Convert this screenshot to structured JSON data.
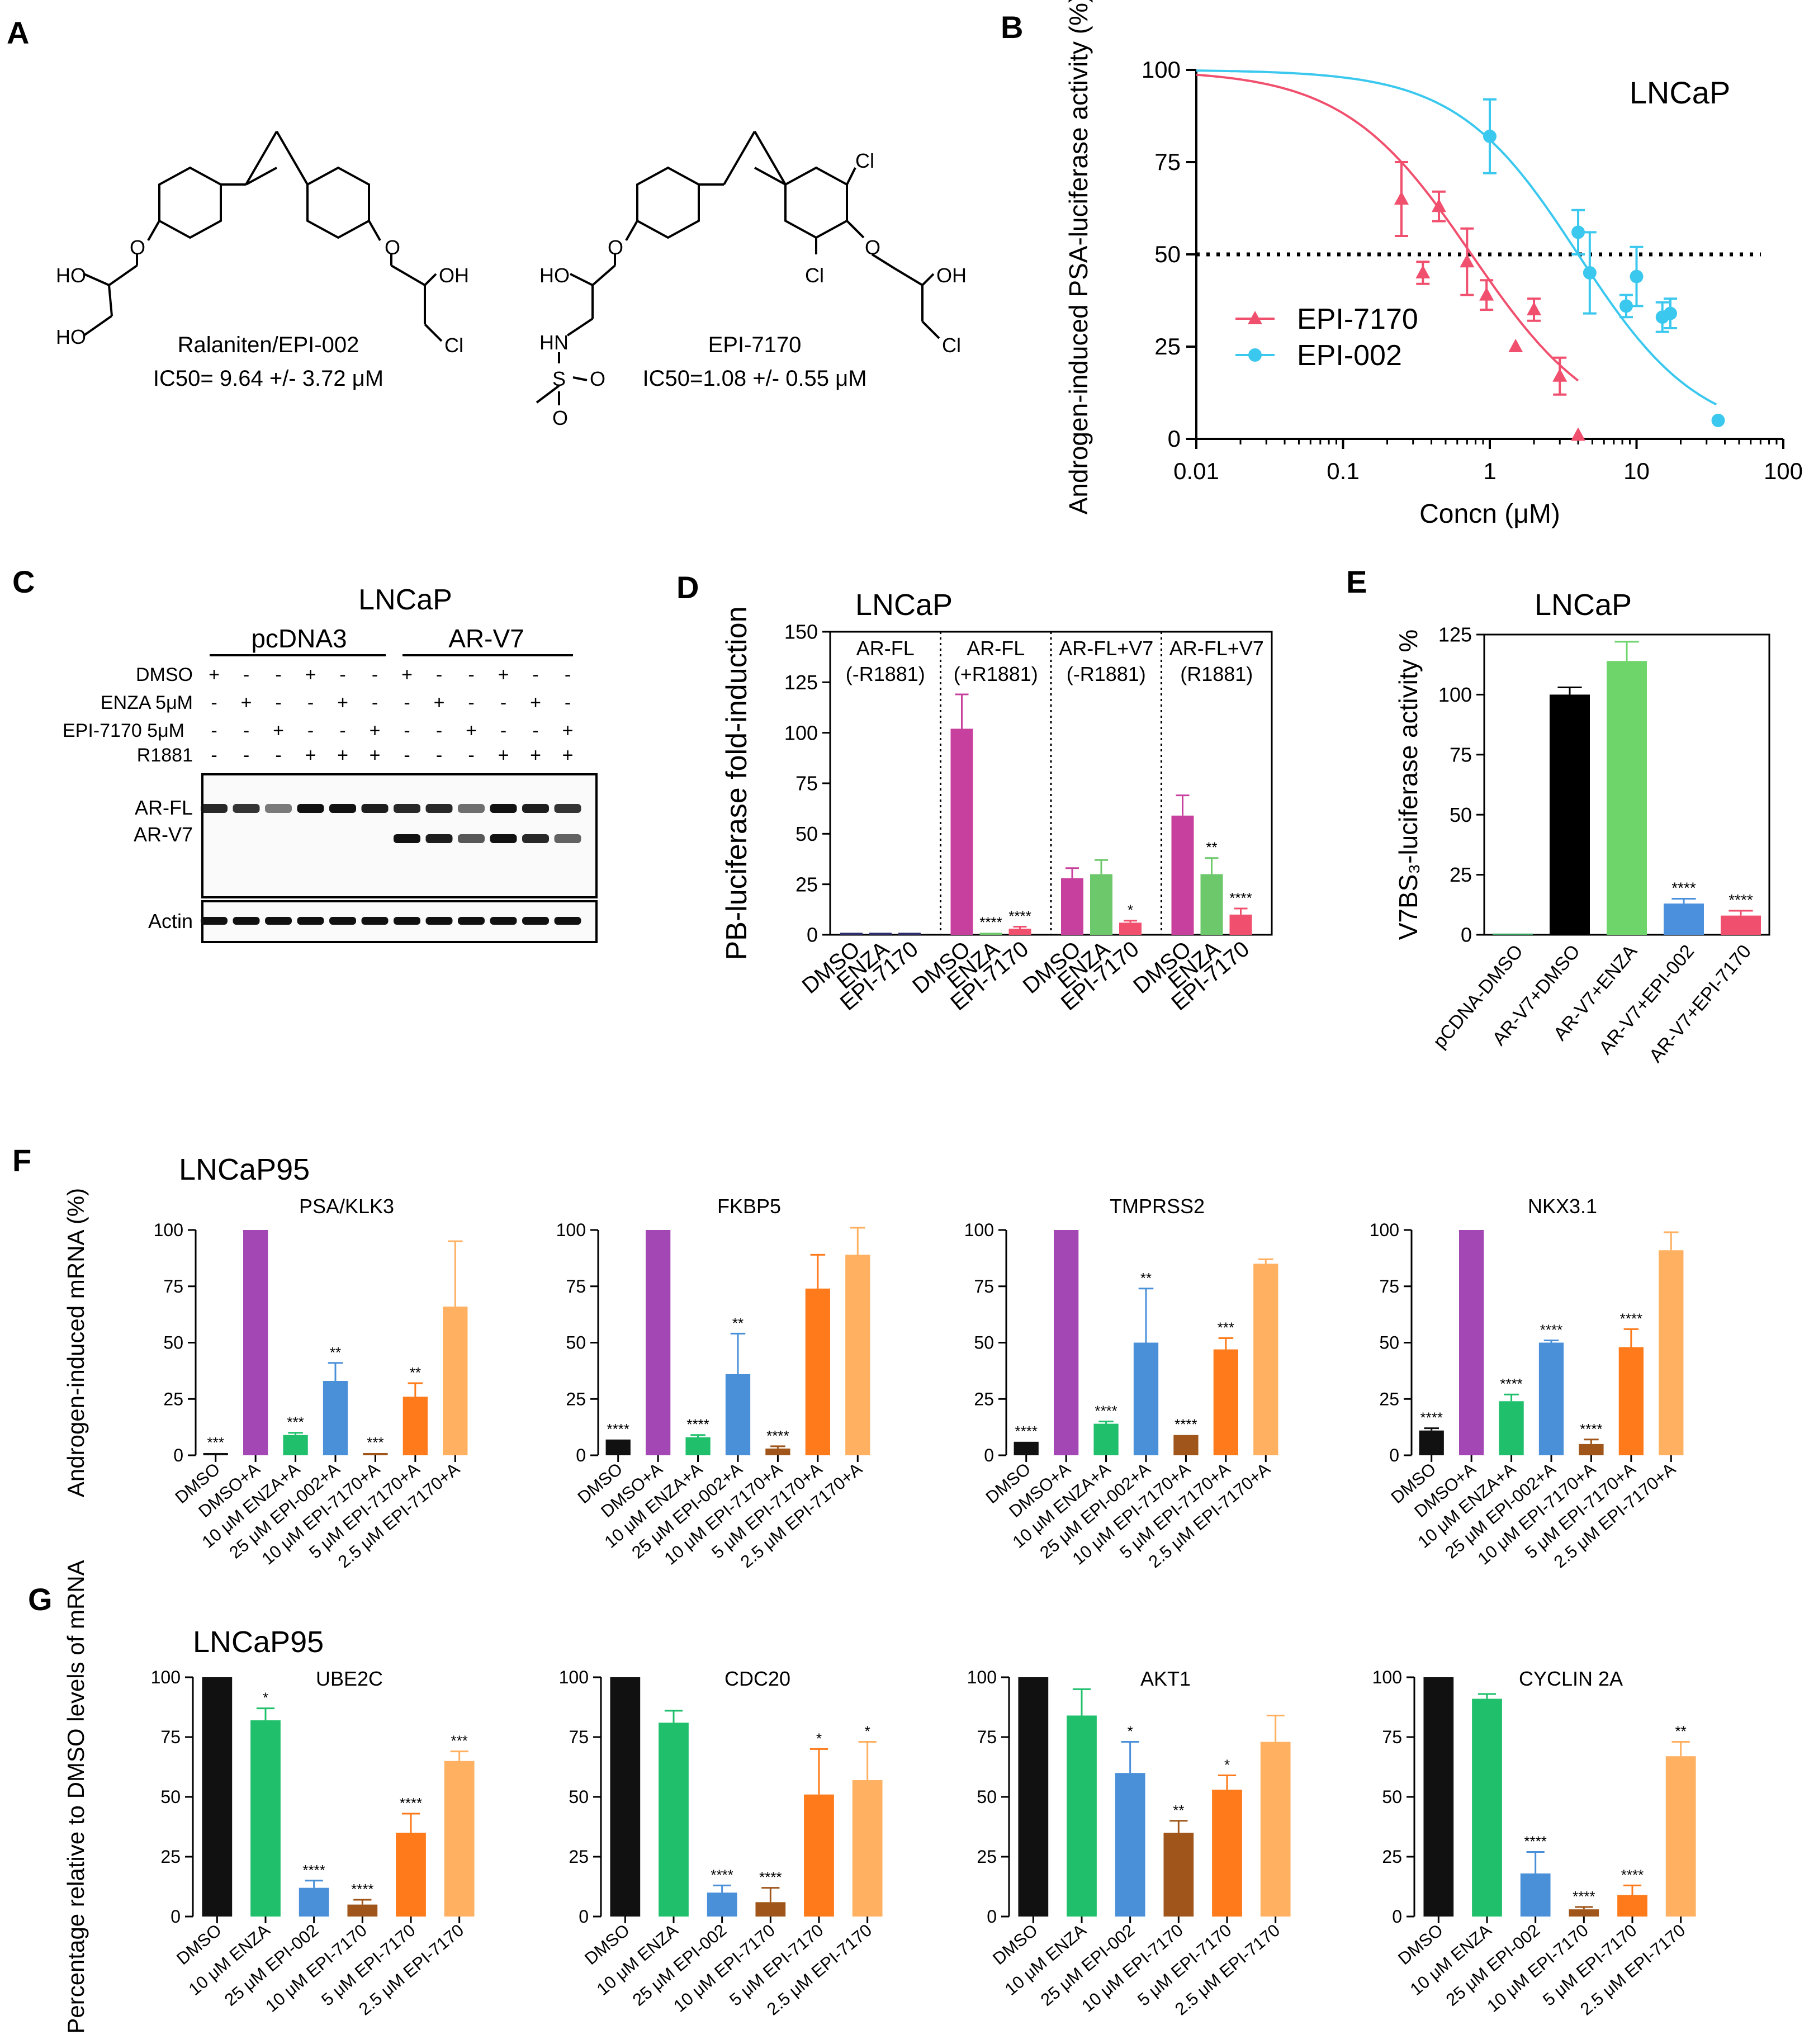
{
  "panel_letters": [
    "A",
    "B",
    "C",
    "D",
    "E",
    "F",
    "G"
  ],
  "structures": {
    "epi002": {
      "name": "Ralaniten/EPI-002",
      "ic50": "IC50= 9.64 +/- 3.72 μM",
      "atoms": [
        "HO",
        "HO",
        "O",
        "O",
        "OH",
        "Cl"
      ]
    },
    "epi7170": {
      "name": "EPI-7170",
      "ic50": "IC50=1.08 +/- 0.55 μM",
      "atoms": [
        "HO",
        "HN",
        "S",
        "O",
        "O",
        "O",
        "O",
        "Cl",
        "Cl",
        "OH",
        "Cl"
      ]
    }
  },
  "blot": {
    "title": "LNCaP",
    "groups": [
      "pcDNA3",
      "AR-V7"
    ],
    "row_labels": [
      "DMSO",
      "ENZA 5μM",
      "EPI-7170 5μM",
      "R1881"
    ],
    "signs": [
      [
        "+",
        "-",
        "-",
        "+",
        "-",
        "-",
        "+",
        "-",
        "-",
        "+",
        "-",
        "-"
      ],
      [
        "-",
        "+",
        "-",
        "-",
        "+",
        "-",
        "-",
        "+",
        "-",
        "-",
        "+",
        "-"
      ],
      [
        "-",
        "-",
        "+",
        "-",
        "-",
        "+",
        "-",
        "-",
        "+",
        "-",
        "-",
        "+"
      ],
      [
        "-",
        "-",
        "-",
        "+",
        "+",
        "+",
        "-",
        "-",
        "-",
        "+",
        "+",
        "+"
      ]
    ],
    "band_labels": [
      "AR-FL",
      "AR-V7"
    ],
    "actin_label": "Actin"
  },
  "chart_data": [
    {
      "id": "B",
      "type": "scatter",
      "annotation": "LNCaP",
      "xlabel": "Concn (μM)",
      "ylabel": "Androgen-induced PSA-luciferase activity (%)",
      "xscale": "log",
      "xlim": [
        0.01,
        100
      ],
      "ylim": [
        0,
        100
      ],
      "xticks": [
        "0.01",
        "0.1",
        "1",
        "10",
        "100"
      ],
      "yticks": [
        "0",
        "25",
        "50",
        "75",
        "100"
      ],
      "reference_line_y": 50,
      "legend": "left-middle",
      "series": [
        {
          "name": "EPI-7170",
          "color": "#f0506e",
          "marker": "triangle",
          "fit_ic50": 0.75,
          "fit_hill": 1.0,
          "fit_range": [
            0.01,
            4
          ],
          "x": [
            0.25,
            0.35,
            0.45,
            0.7,
            0.95,
            1.5,
            2.0,
            3.0,
            4.0
          ],
          "y": [
            65,
            45,
            63,
            48,
            39,
            25,
            35,
            17,
            1
          ],
          "err": [
            10,
            3,
            4,
            9,
            4,
            0,
            3,
            5,
            0
          ]
        },
        {
          "name": "EPI-002",
          "color": "#3bc8ee",
          "marker": "circle",
          "fit_ic50": 4.0,
          "fit_hill": 1.05,
          "fit_range": [
            0.01,
            35
          ],
          "x": [
            1.0,
            4.0,
            4.8,
            8.5,
            10.0,
            15.0,
            17.0,
            36.0
          ],
          "y": [
            82,
            56,
            45,
            36,
            44,
            33,
            34,
            5
          ],
          "err": [
            10,
            6,
            11,
            3,
            8,
            4,
            4,
            0
          ]
        }
      ]
    },
    {
      "id": "D",
      "type": "bar",
      "title": "LNCaP",
      "ylabel": "PB-luciferase fold-induction",
      "ylim": [
        0,
        150
      ],
      "yticks": [
        "0",
        "25",
        "50",
        "75",
        "100",
        "125",
        "150"
      ],
      "groups": [
        {
          "label": [
            "AR-FL",
            "(-R1881)"
          ],
          "categories": [
            "DMSO",
            "ENZA",
            "EPI-7170"
          ],
          "values": [
            1,
            1,
            1
          ],
          "errors": [
            0,
            0,
            0
          ],
          "sig": [
            "",
            "",
            ""
          ]
        },
        {
          "label": [
            "AR-FL",
            "(+R1881)"
          ],
          "categories": [
            "DMSO",
            "ENZA",
            "EPI-7170"
          ],
          "values": [
            102,
            1,
            3
          ],
          "errors": [
            17,
            0,
            1
          ],
          "sig": [
            "",
            "****",
            "****"
          ]
        },
        {
          "label": [
            "AR-FL+V7",
            "(-R1881)"
          ],
          "categories": [
            "DMSO",
            "ENZA",
            "EPI-7170"
          ],
          "values": [
            28,
            30,
            6
          ],
          "errors": [
            5,
            7,
            1
          ],
          "sig": [
            "",
            "",
            "*"
          ]
        },
        {
          "label": [
            "AR-FL+V7",
            "(R1881)"
          ],
          "categories": [
            "DMSO",
            "ENZA",
            "EPI-7170"
          ],
          "values": [
            59,
            30,
            10
          ],
          "errors": [
            10,
            8,
            3
          ],
          "sig": [
            "",
            "**",
            "****"
          ]
        }
      ],
      "colors": [
        "#c8409e",
        "#6cc86a",
        "#f0506e"
      ],
      "first_group_colors": [
        "#2c2c6c",
        "#2c2c6c",
        "#2c2c6c"
      ]
    },
    {
      "id": "E",
      "type": "bar",
      "title": "LNCaP",
      "ylabel": "V7BS₃-luciferase activity %",
      "ylim": [
        0,
        125
      ],
      "yticks": [
        "0",
        "25",
        "50",
        "75",
        "100",
        "125"
      ],
      "categories": [
        "pCDNA-DMSO",
        "AR-V7+DMSO",
        "AR-V7+ENZA",
        "AR-V7+EPI-002",
        "AR-V7+EPI-7170"
      ],
      "values": [
        0.5,
        100,
        114,
        13,
        8
      ],
      "errors": [
        0,
        3,
        8,
        2,
        2
      ],
      "sig": [
        "",
        "",
        "",
        "****",
        "****"
      ],
      "colors": [
        "#2ca05a",
        "#000000",
        "#6dd56a",
        "#4b90dc",
        "#f0506e"
      ]
    },
    {
      "id": "F",
      "type": "bar",
      "cell_line": "LNCaP95",
      "ylabel": "Androgen-induced mRNA (%)",
      "ylim": [
        0,
        100
      ],
      "yticks": [
        "0",
        "25",
        "50",
        "75",
        "100"
      ],
      "categories": [
        "DMSO",
        "DMSO+A",
        "10 μM ENZA+A",
        "25 μM EPI-002+A",
        "10 μM EPI-7170+A",
        "5 μM EPI-7170+A",
        "2.5 μM EPI-7170+A"
      ],
      "colors": [
        "#111111",
        "#a347b5",
        "#1fbf6b",
        "#4a90d9",
        "#a0561a",
        "#ff7a1a",
        "#ffb060"
      ],
      "series": [
        {
          "name": "PSA/KLK3",
          "values": [
            1,
            100,
            9,
            33,
            1,
            26,
            66
          ],
          "errors": [
            0,
            0,
            1,
            8,
            0,
            6,
            29
          ],
          "sig": [
            "***",
            "",
            "***",
            "**",
            "***",
            "**",
            ""
          ]
        },
        {
          "name": "FKBP5",
          "values": [
            7,
            100,
            8,
            36,
            3,
            74,
            89
          ],
          "errors": [
            0,
            0,
            1,
            18,
            1,
            15,
            12
          ],
          "sig": [
            "****",
            "",
            "****",
            "**",
            "****",
            "",
            ""
          ]
        },
        {
          "name": "TMPRSS2",
          "values": [
            6,
            100,
            14,
            50,
            9,
            47,
            85
          ],
          "errors": [
            0,
            0,
            1,
            24,
            0,
            5,
            2
          ],
          "sig": [
            "****",
            "",
            "****",
            "**",
            "****",
            "***",
            ""
          ]
        },
        {
          "name": "NKX3.1",
          "values": [
            11,
            100,
            24,
            50,
            5,
            48,
            91
          ],
          "errors": [
            1,
            0,
            3,
            1,
            2,
            8,
            8
          ],
          "sig": [
            "****",
            "",
            "****",
            "****",
            "****",
            "****",
            ""
          ]
        }
      ]
    },
    {
      "id": "G",
      "type": "bar",
      "cell_line": "LNCaP95",
      "ylabel": "Percentage relative to DMSO levels of mRNA",
      "ylim": [
        0,
        100
      ],
      "yticks": [
        "0",
        "25",
        "50",
        "75",
        "100"
      ],
      "categories": [
        "DMSO",
        "10 μM ENZA",
        "25 μM EPI-002",
        "10 μM EPI-7170",
        "5 μM EPI-7170",
        "2.5 μM EPI-7170"
      ],
      "colors": [
        "#111111",
        "#1fbf6b",
        "#4a90d9",
        "#a0561a",
        "#ff7a1a",
        "#ffb060"
      ],
      "series": [
        {
          "name": "UBE2C",
          "values": [
            100,
            82,
            12,
            5,
            35,
            65
          ],
          "errors": [
            0,
            5,
            3,
            2,
            8,
            4
          ],
          "sig": [
            "",
            "*",
            "****",
            "****",
            "****",
            "***"
          ]
        },
        {
          "name": "CDC20",
          "values": [
            100,
            81,
            10,
            6,
            51,
            57
          ],
          "errors": [
            0,
            5,
            3,
            6,
            19,
            16
          ],
          "sig": [
            "",
            "",
            "****",
            "****",
            "*",
            "*"
          ]
        },
        {
          "name": "AKT1",
          "values": [
            100,
            84,
            60,
            35,
            53,
            73
          ],
          "errors": [
            0,
            11,
            13,
            5,
            6,
            11
          ],
          "sig": [
            "",
            "",
            "*",
            "**",
            "*",
            ""
          ]
        },
        {
          "name": "CYCLIN 2A",
          "values": [
            100,
            91,
            18,
            3,
            9,
            67
          ],
          "errors": [
            0,
            2,
            9,
            1,
            4,
            6
          ],
          "sig": [
            "",
            "",
            "****",
            "****",
            "****",
            "**"
          ]
        }
      ]
    }
  ]
}
